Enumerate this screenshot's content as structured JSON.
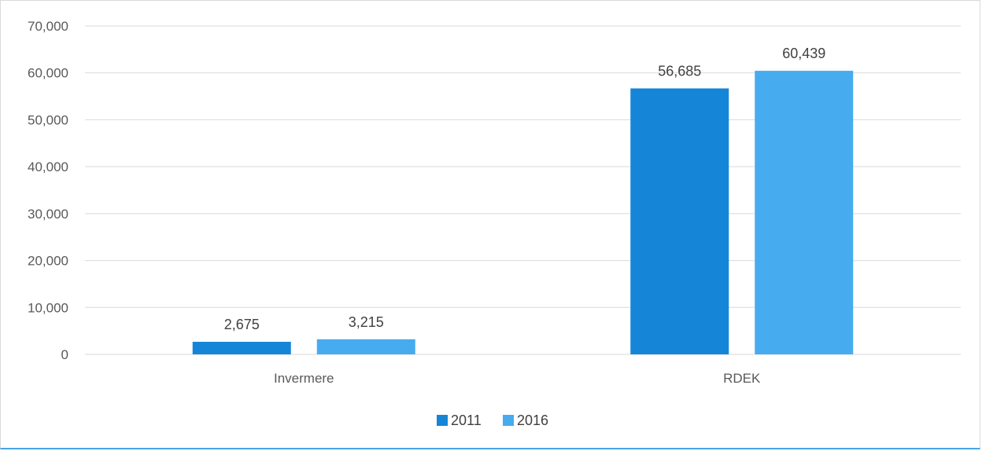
{
  "chart_data": {
    "type": "bar",
    "categories": [
      "Invermere",
      "RDEK"
    ],
    "series": [
      {
        "name": "2011",
        "values": [
          2675,
          56685
        ],
        "labels": [
          "2,675",
          "56,685"
        ],
        "color": "#1585d8"
      },
      {
        "name": "2016",
        "values": [
          3215,
          60439
        ],
        "labels": [
          "3,215",
          "60,439"
        ],
        "color": "#47abef"
      }
    ],
    "y_ticks": [
      "0",
      "10,000",
      "20,000",
      "30,000",
      "40,000",
      "50,000",
      "60,000",
      "70,000"
    ],
    "ylim": [
      0,
      70000
    ],
    "grid": true,
    "legend_position": "bottom",
    "title": "",
    "xlabel": "",
    "ylabel": ""
  }
}
